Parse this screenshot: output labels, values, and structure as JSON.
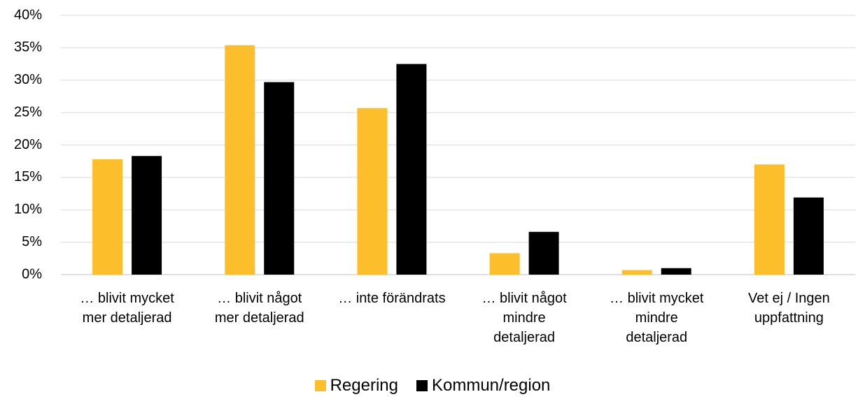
{
  "chart_data": {
    "type": "bar",
    "categories": [
      "… blivit mycket\nmer detaljerad",
      "… blivit något\nmer detaljerad",
      "… inte förändrats",
      "… blivit något\nmindre\ndetaljerad",
      "… blivit mycket\nmindre\ndetaljerad",
      "Vet ej / Ingen\nuppfattning"
    ],
    "series": [
      {
        "name": "Regering",
        "color": "#fdbe2c",
        "values": [
          17.8,
          35.4,
          25.7,
          3.3,
          0.7,
          17.0
        ]
      },
      {
        "name": "Kommun/region",
        "color": "#000000",
        "values": [
          18.3,
          29.7,
          32.5,
          6.6,
          1.0,
          11.9
        ]
      }
    ],
    "ylim": [
      0,
      40
    ],
    "yticks": [
      {
        "value": 0,
        "label": "0%"
      },
      {
        "value": 5,
        "label": "5%"
      },
      {
        "value": 10,
        "label": "10%"
      },
      {
        "value": 15,
        "label": "15%"
      },
      {
        "value": 20,
        "label": "20%"
      },
      {
        "value": 25,
        "label": "25%"
      },
      {
        "value": 30,
        "label": "30%"
      },
      {
        "value": 35,
        "label": "35%"
      },
      {
        "value": 40,
        "label": "40%"
      }
    ],
    "grid": true,
    "legend": "bottom"
  }
}
